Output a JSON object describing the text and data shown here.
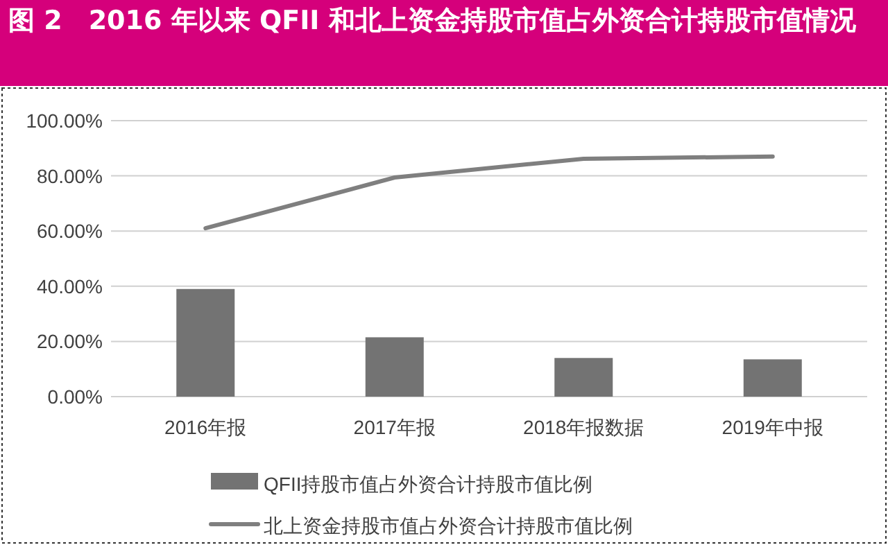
{
  "chart_data": {
    "type": "bar",
    "title": "图 2　2016 年以来 QFII 和北上资金持股市值占外资合计持股市值情况",
    "categories": [
      "2016年报",
      "2017年报",
      "2018年报数据",
      "2019年中报"
    ],
    "series": [
      {
        "name": "QFII持股市值占外资合计持股市值比例",
        "color": "#737373",
        "values": [
          39,
          21.5,
          14,
          13.5
        ]
      },
      {
        "name": "北上资金持股市值占外资合计持股市值比例",
        "type": "line",
        "color": "#7f7f7f",
        "values": [
          61,
          79.4,
          86.2,
          87
        ]
      }
    ],
    "ylim": [
      0,
      100
    ],
    "yticks": [
      {
        "value": 0,
        "label": "0.00%"
      },
      {
        "value": 20,
        "label": "20.00%"
      },
      {
        "value": 40,
        "label": "40.00%"
      },
      {
        "value": 60,
        "label": "60.00%"
      },
      {
        "value": 80,
        "label": "80.00%"
      },
      {
        "value": 100,
        "label": "100.00%"
      }
    ],
    "grid": "y",
    "legend": "bottom"
  }
}
